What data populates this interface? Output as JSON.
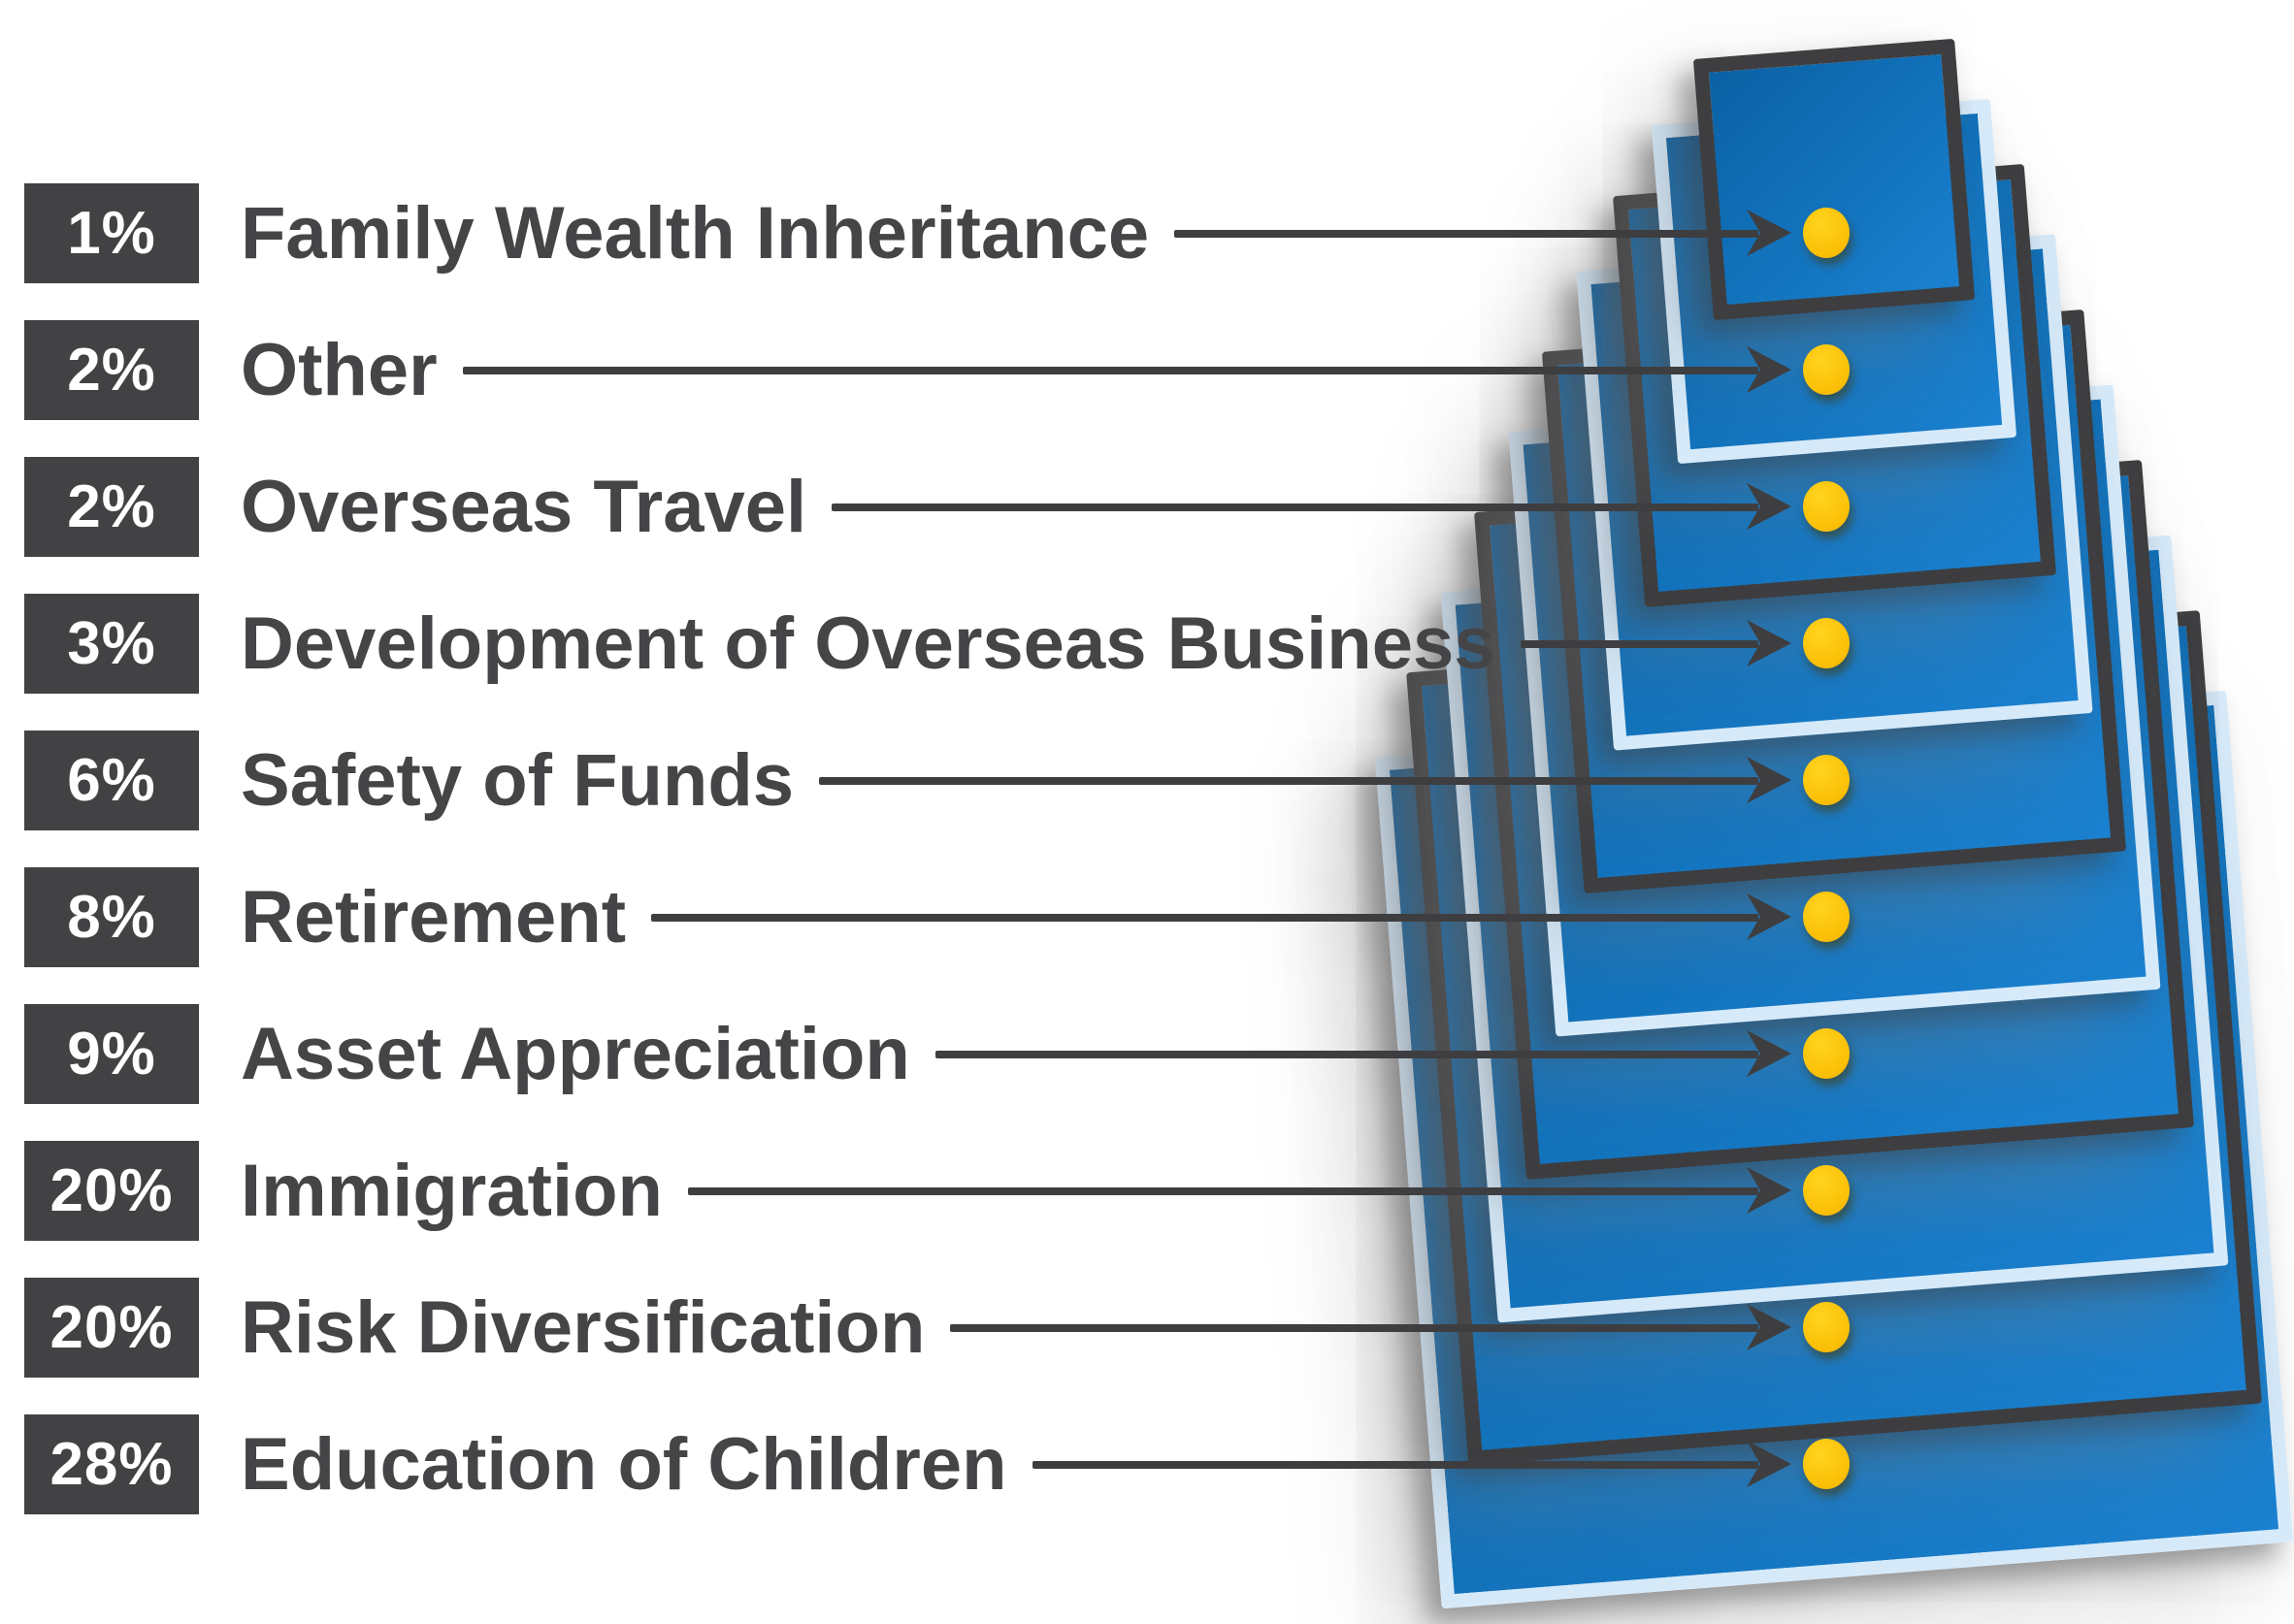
{
  "colors": {
    "square_fill_blue": "#1272BB",
    "square_fill_light": "#1B81D0",
    "square_fill_deep": "#0B61A4",
    "border_dark": "#3E3E40",
    "border_light": "#D6EAFA",
    "marker_yellow": "#FCC10D",
    "line_arrow": "#3E3E40",
    "pct_box_bg": "#424244",
    "pct_text": "#FFFFFF",
    "label_text": "#454547",
    "background": "#FFFFFF"
  },
  "items": [
    {
      "pct": "1%",
      "label": "Family Wealth Inheritance",
      "value": 1,
      "border": "dark",
      "marker": "yellow-dot"
    },
    {
      "pct": "2%",
      "label": "Other",
      "value": 2,
      "border": "light",
      "marker": "yellow-dot"
    },
    {
      "pct": "2%",
      "label": "Overseas Travel",
      "value": 2,
      "border": "dark",
      "marker": "yellow-dot"
    },
    {
      "pct": "3%",
      "label": "Development of Overseas Business",
      "value": 3,
      "border": "light",
      "marker": "yellow-dot"
    },
    {
      "pct": "6%",
      "label": "Safety of Funds",
      "value": 6,
      "border": "dark",
      "marker": "yellow-dot"
    },
    {
      "pct": "8%",
      "label": "Retirement",
      "value": 8,
      "border": "light",
      "marker": "yellow-dot"
    },
    {
      "pct": "9%",
      "label": "Asset Appreciation",
      "value": 9,
      "border": "dark",
      "marker": "yellow-dot"
    },
    {
      "pct": "20%",
      "label": "Immigration",
      "value": 20,
      "border": "light",
      "marker": "yellow-dot"
    },
    {
      "pct": "20%",
      "label": "Risk Diversification",
      "value": 20,
      "border": "dark",
      "marker": "yellow-dot"
    },
    {
      "pct": "28%",
      "label": "Education of Children",
      "value": 28,
      "border": "light",
      "marker": "yellow-dot"
    }
  ],
  "chart_data": {
    "type": "bar",
    "variant": "stacked-squares-pyramid",
    "title": "",
    "xlabel": "",
    "ylabel": "",
    "unit": "%",
    "categories": [
      "Family Wealth Inheritance",
      "Other",
      "Overseas Travel",
      "Development of Overseas Business",
      "Safety of Funds",
      "Retirement",
      "Asset Appreciation",
      "Immigration",
      "Risk Diversification",
      "Education of Children"
    ],
    "values": [
      1,
      2,
      2,
      3,
      6,
      8,
      9,
      20,
      20,
      28
    ],
    "value_labels": [
      "1%",
      "2%",
      "2%",
      "3%",
      "6%",
      "8%",
      "9%",
      "20%",
      "20%",
      "28%"
    ],
    "layout_hints": {
      "order": "smallest-value-on-top",
      "square_size_encodes_value_rank": true,
      "legend": "none",
      "grid": "off",
      "connector": "horizontal-line-with-arrow-to-yellow-dot",
      "square_border_alternation": [
        "dark",
        "light"
      ]
    }
  }
}
